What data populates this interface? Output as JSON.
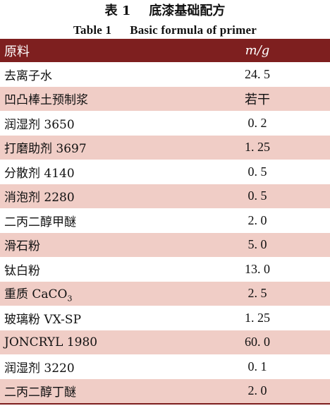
{
  "caption": {
    "cn_label": "表 1",
    "cn_title": "底漆基础配方",
    "en_label": "Table 1",
    "en_title": "Basic formula of primer"
  },
  "header": {
    "col1": "原料",
    "col2": "m/g"
  },
  "colors": {
    "header_bg": "#7e1f1f",
    "stripe": "#f0cdc6"
  },
  "rows": [
    {
      "name": "去离子水",
      "value": "24. 5"
    },
    {
      "name": "凹凸棒土预制浆",
      "value": "若干"
    },
    {
      "name": "润湿剂 3650",
      "value": "0. 2"
    },
    {
      "name": "打磨助剂 3697",
      "value": "1. 25"
    },
    {
      "name": "分散剂 4140",
      "value": "0. 5"
    },
    {
      "name": "消泡剂 2280",
      "value": "0. 5"
    },
    {
      "name": "二丙二醇甲醚",
      "value": "2. 0"
    },
    {
      "name": "滑石粉",
      "value": "5. 0"
    },
    {
      "name": "钛白粉",
      "value": "13. 0"
    },
    {
      "name": "重质 CaCO",
      "name_sub": "3",
      "value": "2. 5"
    },
    {
      "name": "玻璃粉 VX-SP",
      "value": "1. 25"
    },
    {
      "name": "JONCRYL 1980",
      "value": "60. 0"
    },
    {
      "name": "润湿剂 3220",
      "value": "0. 1"
    },
    {
      "name": "二丙二醇丁醚",
      "value": "2. 0"
    }
  ]
}
